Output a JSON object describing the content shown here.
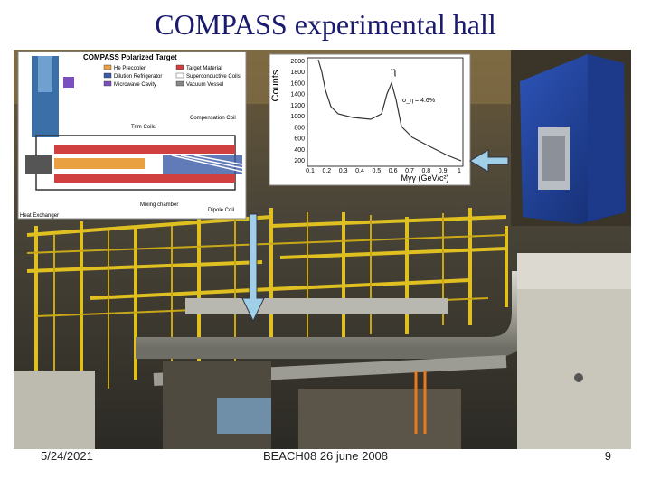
{
  "slide": {
    "title": "COMPASS experimental hall",
    "footer": {
      "date": "5/24/2021",
      "center": "BEACH08 26 june 2008",
      "page": "9"
    },
    "target_diagram": {
      "title": "COMPASS Polarized Target",
      "legend": [
        "He Precooler",
        "Dilution Refrigerator",
        "Microwave Cavity",
        "Target Material",
        "Superconductive Coils",
        "Vacuum Vessel"
      ],
      "labels": [
        "Trim Coils",
        "Compensation Coil",
        "Dipole Coil",
        "Mixing chamber",
        "Heat Exchanger"
      ]
    },
    "histogram": {
      "y_label": "Counts",
      "x_label": "Mγγ (GeV/c²)",
      "peak_label": "η",
      "width_label": "σ_η = 4.6%",
      "yticks": [
        200,
        400,
        600,
        800,
        1000,
        1200,
        1400,
        1600,
        1800,
        2000
      ],
      "xticks": [
        0.1,
        0.2,
        0.3,
        0.4,
        0.5,
        0.6,
        0.7,
        0.8,
        0.9,
        1
      ]
    }
  }
}
